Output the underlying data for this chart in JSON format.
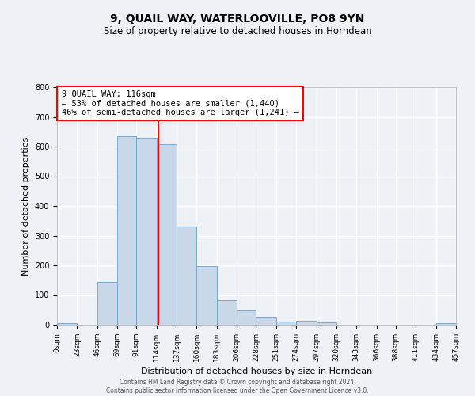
{
  "title": "9, QUAIL WAY, WATERLOOVILLE, PO8 9YN",
  "subtitle": "Size of property relative to detached houses in Horndean",
  "xlabel": "Distribution of detached houses by size in Horndean",
  "ylabel": "Number of detached properties",
  "bin_edges": [
    0,
    23,
    46,
    69,
    91,
    114,
    137,
    160,
    183,
    206,
    228,
    251,
    274,
    297,
    320,
    343,
    366,
    388,
    411,
    434,
    457
  ],
  "bin_counts": [
    5,
    0,
    143,
    635,
    630,
    607,
    332,
    198,
    84,
    47,
    27,
    11,
    13,
    8,
    0,
    0,
    0,
    0,
    0,
    5
  ],
  "bar_color": "#c8d8e8",
  "bar_edge_color": "#7aa8c8",
  "vline_x": 116,
  "vline_color": "red",
  "annotation_text": "9 QUAIL WAY: 116sqm\n← 53% of detached houses are smaller (1,440)\n46% of semi-detached houses are larger (1,241) →",
  "annotation_box_color": "white",
  "annotation_box_edge_color": "red",
  "ylim": [
    0,
    800
  ],
  "yticks": [
    0,
    100,
    200,
    300,
    400,
    500,
    600,
    700,
    800
  ],
  "tick_labels": [
    "0sqm",
    "23sqm",
    "46sqm",
    "69sqm",
    "91sqm",
    "114sqm",
    "137sqm",
    "160sqm",
    "183sqm",
    "206sqm",
    "228sqm",
    "251sqm",
    "274sqm",
    "297sqm",
    "320sqm",
    "343sqm",
    "366sqm",
    "388sqm",
    "411sqm",
    "434sqm",
    "457sqm"
  ],
  "footer_line1": "Contains HM Land Registry data © Crown copyright and database right 2024.",
  "footer_line2": "Contains public sector information licensed under the Open Government Licence v3.0.",
  "background_color": "#eef2f7",
  "grid_color": "#ffffff",
  "title_fontsize": 10,
  "subtitle_fontsize": 8.5,
  "ylabel_fontsize": 8,
  "xlabel_fontsize": 8,
  "tick_fontsize": 6.5,
  "ytick_fontsize": 7,
  "footer_fontsize": 5.5,
  "annot_fontsize": 7.5
}
